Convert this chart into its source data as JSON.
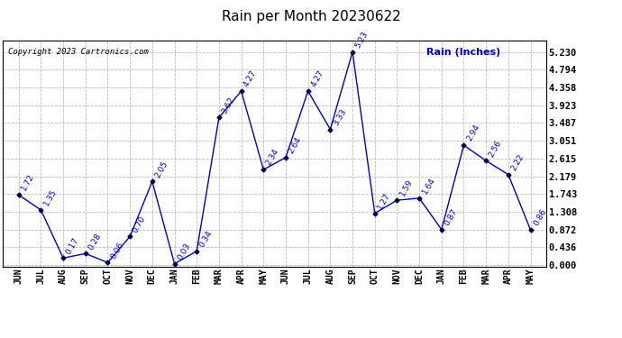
{
  "title": "Rain per Month 20230622",
  "copyright": "Copyright 2023 Cartronics.com",
  "legend_label": "Rain (Inches)",
  "months": [
    "JUN",
    "JUL",
    "AUG",
    "SEP",
    "OCT",
    "NOV",
    "DEC",
    "JAN",
    "FEB",
    "MAR",
    "APR",
    "MAY",
    "JUN",
    "JUL",
    "AUG",
    "SEP",
    "OCT",
    "NOV",
    "DEC",
    "JAN",
    "FEB",
    "MAR",
    "APR",
    "MAY"
  ],
  "values": [
    1.72,
    1.35,
    0.17,
    0.28,
    0.06,
    0.7,
    2.05,
    0.03,
    0.34,
    3.62,
    4.27,
    2.34,
    2.64,
    4.27,
    3.33,
    5.23,
    1.27,
    1.59,
    1.64,
    0.87,
    2.94,
    2.56,
    2.22,
    0.86
  ],
  "line_color": "#0000cc",
  "marker_color": "#000044",
  "grid_color": "#bbbbbb",
  "bg_color": "#ffffff",
  "title_color": "#000000",
  "label_color": "#0000cc",
  "ymin": 0.0,
  "ymax": 5.23,
  "yticks": [
    0.0,
    0.436,
    0.872,
    1.308,
    1.743,
    2.179,
    2.615,
    3.051,
    3.487,
    3.923,
    4.358,
    4.794,
    5.23
  ]
}
